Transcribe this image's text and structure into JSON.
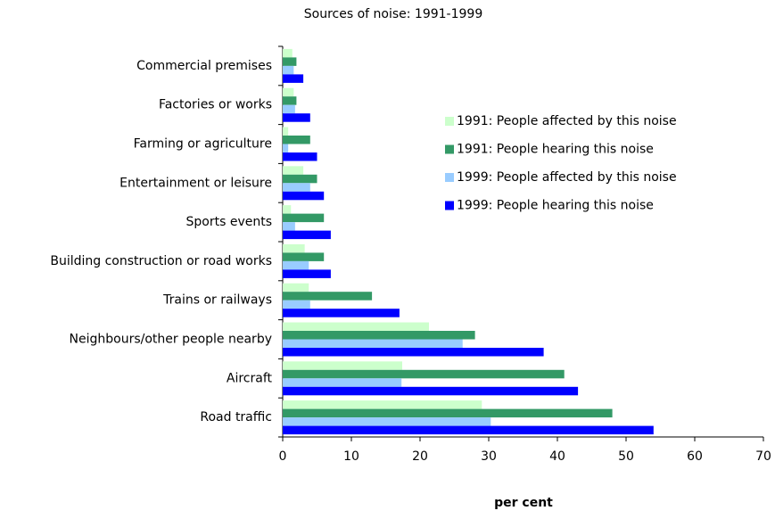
{
  "chart_data": {
    "type": "hbar",
    "title": "Sources of noise: 1991-1999",
    "categories": [
      "Commercial premises",
      "Factories or works",
      "Farming or agriculture",
      "Entertainment or leisure",
      "Sports events",
      "Building construction or road works",
      "Trains or railways",
      "Neighbours/other people nearby",
      "Aircraft",
      "Road traffic"
    ],
    "series": [
      {
        "name": "1991: People affected by this noise",
        "color": "#ccffcc",
        "values": [
          1.4,
          1.6,
          0.8,
          3,
          1.2,
          3.2,
          3.8,
          21.3,
          17.4,
          29
        ]
      },
      {
        "name": "1991: People hearing this noise",
        "color": "#339966",
        "values": [
          2,
          2,
          4,
          5,
          6,
          6,
          13,
          28,
          41,
          48
        ]
      },
      {
        "name": "1999: People affected by this noise",
        "color": "#99ccff",
        "values": [
          1.6,
          1.8,
          0.8,
          4,
          1.8,
          3.8,
          4,
          26.2,
          17.3,
          30.3
        ]
      },
      {
        "name": "1999: People hearing this noise",
        "color": "#0000ff",
        "values": [
          3,
          4,
          5,
          6,
          7,
          7,
          17,
          38,
          43,
          54
        ]
      }
    ],
    "xlabel": "per cent",
    "xlim": [
      0,
      70
    ],
    "xticks": [
      0,
      10,
      20,
      30,
      40,
      50,
      60,
      70
    ],
    "grid": false
  }
}
